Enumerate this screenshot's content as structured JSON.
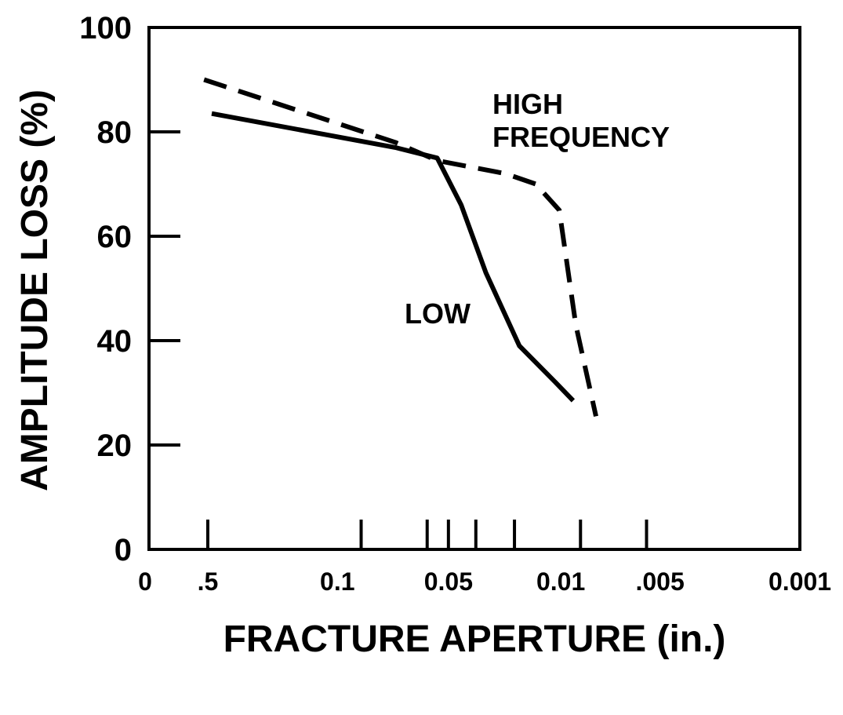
{
  "chart_data": {
    "type": "line",
    "title": "",
    "xlabel": "FRACTURE APERTURE (in.)",
    "ylabel": "AMPLITUDE LOSS (%)",
    "ylim": [
      0,
      100
    ],
    "x_scale": "log-reversed",
    "yticks": [
      "0",
      "20",
      "40",
      "60",
      "80",
      "100"
    ],
    "xtick_labels": [
      "0",
      ".5",
      "0.1",
      "0.05",
      "0.01",
      ".005",
      "0.001"
    ],
    "xtick_marks": [
      "0.5",
      "0.1",
      "0.05",
      "0.04",
      "0.03",
      "0.02",
      "0.01",
      "0.005"
    ],
    "grid": false,
    "legend": "none",
    "annotations": [
      {
        "id": "high",
        "lines": [
          "HIGH",
          "FREQUENCY"
        ]
      },
      {
        "id": "low",
        "lines": [
          "LOW"
        ]
      }
    ],
    "series": [
      {
        "name": "",
        "style": "solid",
        "points": [
          {
            "x": 0.48,
            "y": 83.5
          },
          {
            "x": 0.07,
            "y": 77
          },
          {
            "x": 0.045,
            "y": 75
          },
          {
            "x": 0.035,
            "y": 66
          },
          {
            "x": 0.027,
            "y": 53
          },
          {
            "x": 0.019,
            "y": 39
          },
          {
            "x": 0.013,
            "y": 32
          },
          {
            "x": 0.0108,
            "y": 28.5
          }
        ]
      },
      {
        "name": "",
        "style": "dashed",
        "points": [
          {
            "x": 0.52,
            "y": 90
          },
          {
            "x": 0.07,
            "y": 78
          },
          {
            "x": 0.045,
            "y": 74.5
          },
          {
            "x": 0.022,
            "y": 72
          },
          {
            "x": 0.016,
            "y": 70
          },
          {
            "x": 0.0125,
            "y": 65
          },
          {
            "x": 0.0105,
            "y": 43
          },
          {
            "x": 0.0085,
            "y": 25.5
          }
        ]
      }
    ]
  }
}
